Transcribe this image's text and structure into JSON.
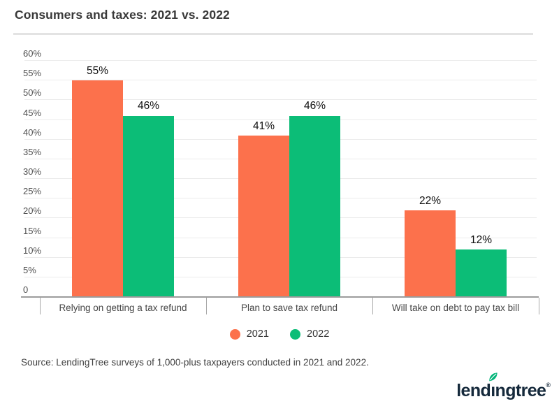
{
  "source_note": "Source: LendingTree surveys of 1,000-plus taxpayers conducted in 2021 and 2022.",
  "colors": {
    "accent_2021": "#fc714c",
    "accent_2022": "#0cbd77",
    "gridline": "#ebebeb",
    "axis_line": "#9c9c9c",
    "title_divider": "#e3e3e3",
    "logo_navy": "#15293b",
    "logo_leaf_green": "#00b478"
  },
  "logo": {
    "part1": "lend",
    "part2": "ı",
    "part3": "ngtree",
    "registered_mark": "®"
  },
  "chart_data": {
    "type": "bar",
    "title": "Consumers and taxes: 2021 vs. 2022",
    "categories": [
      "Relying on getting a tax refund",
      "Plan to save tax refund",
      "Will take on debt to pay tax bill"
    ],
    "series": [
      {
        "name": "2021",
        "color": "#fc714c",
        "values": [
          55,
          41,
          22
        ]
      },
      {
        "name": "2022",
        "color": "#0cbd77",
        "values": [
          46,
          46,
          12
        ]
      }
    ],
    "data_labels": [
      [
        "55%",
        "41%",
        "22%"
      ],
      [
        "46%",
        "46%",
        "12%"
      ]
    ],
    "value_suffix": "%",
    "xlabel": "",
    "ylabel": "",
    "ylim": [
      0,
      60
    ],
    "yticks": [
      0,
      5,
      10,
      15,
      20,
      25,
      30,
      35,
      40,
      45,
      50,
      55,
      60
    ],
    "ytick_labels": [
      "0",
      "5%",
      "10%",
      "15%",
      "20%",
      "25%",
      "30%",
      "35%",
      "40%",
      "45%",
      "50%",
      "55%",
      "60%"
    ],
    "grid": true,
    "legend_position": "bottom"
  }
}
